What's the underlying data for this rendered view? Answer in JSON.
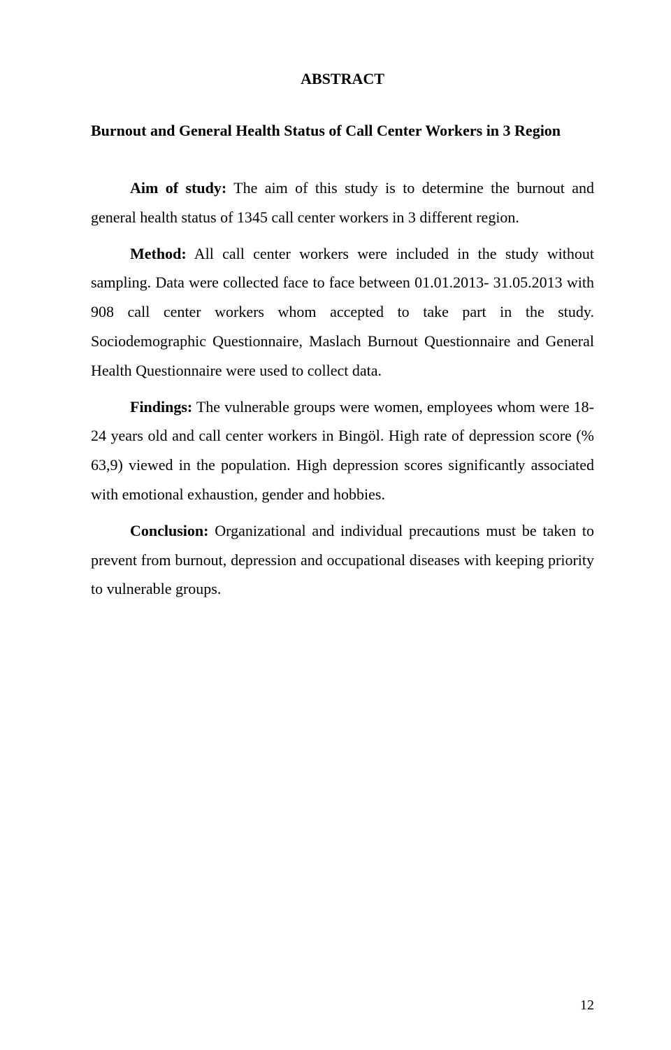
{
  "title": "ABSTRACT",
  "subtitle": "Burnout and General Health Status of Call Center Workers in 3 Region",
  "paragraphs": {
    "aim": {
      "label": "Aim of study:",
      "text": " The aim of this study is to determine the burnout and general health status of 1345 call center workers in 3 different region."
    },
    "method": {
      "label": "Method:",
      "text": " All call center workers were included in the study without sampling. Data were collected face to face between 01.01.2013- 31.05.2013 with 908 call center workers whom accepted to take part in the study. Sociodemographic Questionnaire, Maslach Burnout Questionnaire and General Health Questionnaire were used to collect data."
    },
    "findings": {
      "label": "Findings:",
      "text": " The vulnerable groups were women, employees whom were 18-24 years old and call center workers in Bingöl. High rate of depression score (% 63,9) viewed in the population. High depression scores significantly associated with emotional exhaustion, gender and hobbies."
    },
    "conclusion": {
      "label": "Conclusion:",
      "text": " Organizational and individual precautions must be taken to prevent from burnout, depression and occupational diseases with keeping priority to vulnerable groups."
    }
  },
  "page_number": "12"
}
